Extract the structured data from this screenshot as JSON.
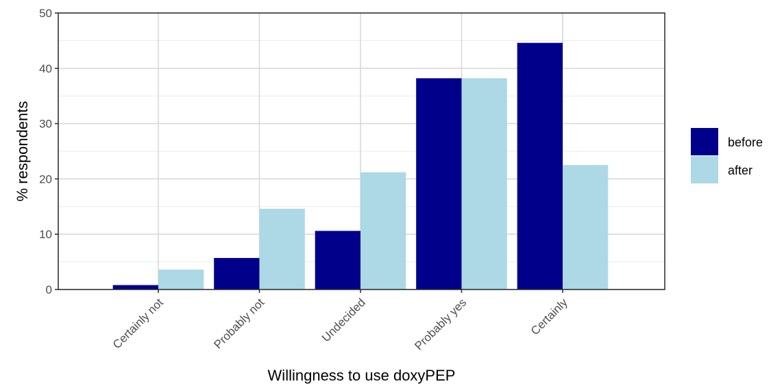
{
  "chart_data": {
    "type": "bar",
    "categories": [
      "Certainly not",
      "Probably not",
      "Undecided",
      "Probably yes",
      "Certainly"
    ],
    "series": [
      {
        "name": "before",
        "color": "#00008b",
        "values": [
          0.8,
          5.7,
          10.6,
          38.2,
          44.6
        ]
      },
      {
        "name": "after",
        "color": "#add8e6",
        "values": [
          3.6,
          14.6,
          21.2,
          38.2,
          22.5
        ]
      }
    ],
    "xlabel": "Willingness to use doxyPEP",
    "ylabel": "% respondents",
    "ylim": [
      0,
      50
    ],
    "yticks": [
      0,
      10,
      20,
      30,
      40,
      50
    ],
    "grid": true,
    "legend_position": "right",
    "panel_border_color": "#333333",
    "grid_major_color": "#d9d9d9",
    "grid_minor_color": "#ebebeb"
  }
}
